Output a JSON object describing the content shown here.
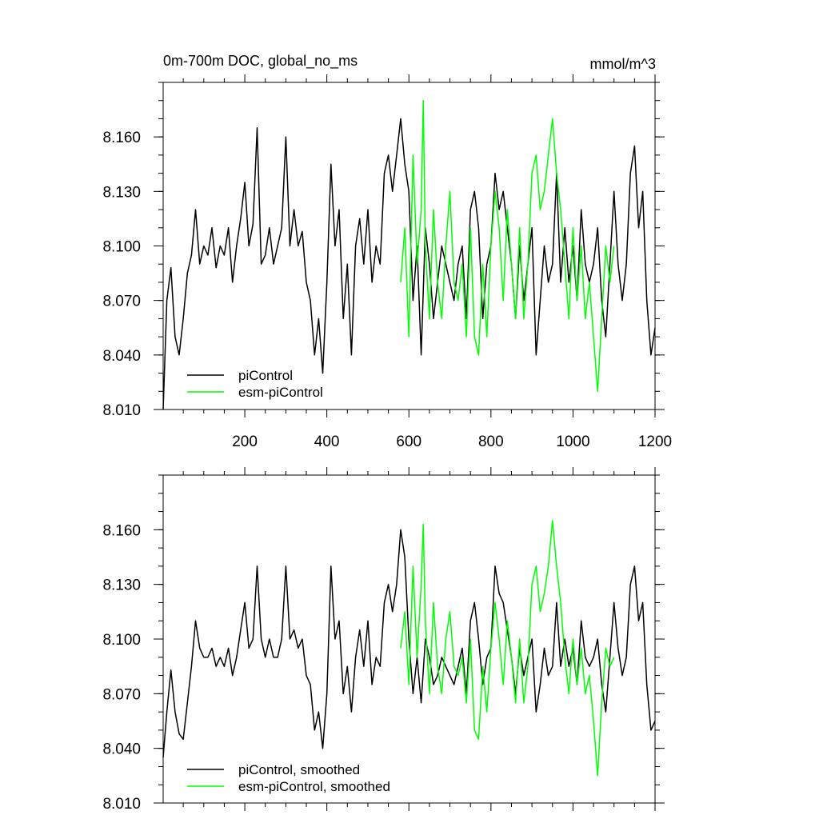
{
  "chart_data": [
    {
      "type": "line",
      "title": "0m-700m DOC, global_no_ms",
      "units": "mmol/m^3",
      "xlim": [
        1,
        1200
      ],
      "ylim": [
        8.01,
        8.19
      ],
      "xticks": [
        200,
        400,
        600,
        800,
        1000,
        1200
      ],
      "xtick_labels": [
        "200",
        "400",
        "600",
        "800",
        "1000",
        "1200"
      ],
      "yticks": [
        8.01,
        8.04,
        8.07,
        8.1,
        8.13,
        8.16
      ],
      "ytick_labels": [
        "8.010",
        "8.040",
        "8.070",
        "8.100",
        "8.130",
        "8.160"
      ],
      "legend": [
        "piControl",
        "esm-piControl"
      ],
      "legend_position": "bottom-left",
      "series": [
        {
          "name": "piControl",
          "color": "#000000",
          "x": [
            1,
            10,
            20,
            30,
            40,
            50,
            60,
            70,
            80,
            90,
            100,
            110,
            120,
            130,
            140,
            150,
            160,
            170,
            180,
            190,
            200,
            210,
            220,
            230,
            240,
            250,
            260,
            270,
            280,
            290,
            300,
            310,
            320,
            330,
            340,
            350,
            360,
            370,
            380,
            390,
            400,
            410,
            420,
            430,
            440,
            450,
            460,
            470,
            480,
            490,
            500,
            510,
            520,
            530,
            540,
            550,
            560,
            570,
            580,
            590,
            600,
            610,
            620,
            630,
            640,
            650,
            660,
            670,
            680,
            690,
            700,
            710,
            720,
            730,
            740,
            750,
            760,
            770,
            780,
            790,
            800,
            810,
            820,
            830,
            840,
            850,
            860,
            870,
            880,
            890,
            900,
            910,
            920,
            930,
            940,
            950,
            960,
            970,
            980,
            990,
            1000,
            1010,
            1020,
            1030,
            1040,
            1050,
            1060,
            1070,
            1080,
            1090,
            1100,
            1110,
            1120,
            1130,
            1140,
            1150,
            1160,
            1170,
            1180,
            1190,
            1200
          ],
          "values": [
            8.01,
            8.07,
            8.088,
            8.05,
            8.04,
            8.06,
            8.085,
            8.095,
            8.12,
            8.09,
            8.1,
            8.095,
            8.11,
            8.088,
            8.1,
            8.095,
            8.11,
            8.08,
            8.1,
            8.115,
            8.135,
            8.1,
            8.112,
            8.165,
            8.09,
            8.095,
            8.11,
            8.09,
            8.1,
            8.11,
            8.16,
            8.1,
            8.12,
            8.1,
            8.108,
            8.08,
            8.07,
            8.04,
            8.06,
            8.03,
            8.08,
            8.145,
            8.1,
            8.12,
            8.06,
            8.09,
            8.04,
            8.1,
            8.115,
            8.09,
            8.12,
            8.08,
            8.1,
            8.09,
            8.14,
            8.15,
            8.13,
            8.15,
            8.17,
            8.145,
            8.13,
            8.07,
            8.1,
            8.04,
            8.11,
            8.09,
            8.06,
            8.08,
            8.1,
            8.09,
            8.08,
            8.07,
            8.09,
            8.1,
            8.06,
            8.12,
            8.13,
            8.11,
            8.06,
            8.09,
            8.1,
            8.14,
            8.12,
            8.13,
            8.11,
            8.09,
            8.06,
            8.1,
            8.07,
            8.09,
            8.11,
            8.04,
            8.07,
            8.1,
            8.08,
            8.09,
            8.14,
            8.08,
            8.11,
            8.08,
            8.1,
            8.07,
            8.12,
            8.09,
            8.08,
            8.09,
            8.11,
            8.07,
            8.05,
            8.09,
            8.13,
            8.09,
            8.07,
            8.09,
            8.14,
            8.155,
            8.11,
            8.13,
            8.07,
            8.04,
            8.055
          ]
        },
        {
          "name": "esm-piControl",
          "color": "#00ff00",
          "x": [
            580,
            590,
            600,
            610,
            620,
            630,
            635,
            640,
            650,
            660,
            670,
            680,
            690,
            700,
            710,
            720,
            730,
            740,
            750,
            760,
            770,
            780,
            790,
            800,
            810,
            820,
            830,
            840,
            850,
            860,
            870,
            880,
            890,
            900,
            910,
            920,
            930,
            940,
            950,
            960,
            970,
            980,
            990,
            1000,
            1010,
            1020,
            1030,
            1040,
            1050,
            1060,
            1070,
            1080,
            1090,
            1100
          ],
          "values": [
            8.08,
            8.11,
            8.05,
            8.15,
            8.09,
            8.12,
            8.18,
            8.1,
            8.06,
            8.12,
            8.08,
            8.06,
            8.1,
            8.13,
            8.08,
            8.07,
            8.09,
            8.05,
            8.11,
            8.05,
            8.04,
            8.09,
            8.05,
            8.1,
            8.13,
            8.11,
            8.07,
            8.12,
            8.09,
            8.06,
            8.11,
            8.06,
            8.09,
            8.14,
            8.15,
            8.12,
            8.13,
            8.15,
            8.17,
            8.14,
            8.12,
            8.09,
            8.06,
            8.11,
            8.07,
            8.1,
            8.06,
            8.08,
            8.05,
            8.02,
            8.06,
            8.1,
            8.08,
            8.1
          ]
        }
      ]
    },
    {
      "type": "line",
      "title": "",
      "xlim": [
        1,
        1200
      ],
      "ylim": [
        8.01,
        8.19
      ],
      "yticks": [
        8.01,
        8.04,
        8.07,
        8.1,
        8.13,
        8.16
      ],
      "ytick_labels": [
        "8.010",
        "8.040",
        "8.070",
        "8.100",
        "8.130",
        "8.160"
      ],
      "legend": [
        "piControl, smoothed",
        "esm-piControl, smoothed"
      ],
      "legend_position": "bottom-left",
      "series": [
        {
          "name": "piControl, smoothed",
          "color": "#000000",
          "x": [
            1,
            10,
            20,
            30,
            40,
            50,
            60,
            70,
            80,
            90,
            100,
            110,
            120,
            130,
            140,
            150,
            160,
            170,
            180,
            190,
            200,
            210,
            220,
            230,
            240,
            250,
            260,
            270,
            280,
            290,
            300,
            310,
            320,
            330,
            340,
            350,
            360,
            370,
            380,
            390,
            400,
            410,
            420,
            430,
            440,
            450,
            460,
            470,
            480,
            490,
            500,
            510,
            520,
            530,
            540,
            550,
            560,
            570,
            580,
            590,
            600,
            610,
            620,
            630,
            640,
            650,
            660,
            670,
            680,
            690,
            700,
            710,
            720,
            730,
            740,
            750,
            760,
            770,
            780,
            790,
            800,
            810,
            820,
            830,
            840,
            850,
            860,
            870,
            880,
            890,
            900,
            910,
            920,
            930,
            940,
            950,
            960,
            970,
            980,
            990,
            1000,
            1010,
            1020,
            1030,
            1040,
            1050,
            1060,
            1070,
            1080,
            1090,
            1100,
            1110,
            1120,
            1130,
            1140,
            1150,
            1160,
            1170,
            1180,
            1190,
            1200
          ],
          "values": [
            8.035,
            8.06,
            8.083,
            8.06,
            8.048,
            8.045,
            8.065,
            8.085,
            8.11,
            8.095,
            8.09,
            8.09,
            8.095,
            8.085,
            8.09,
            8.085,
            8.095,
            8.08,
            8.09,
            8.105,
            8.12,
            8.095,
            8.1,
            8.14,
            8.1,
            8.09,
            8.1,
            8.09,
            8.09,
            8.1,
            8.14,
            8.1,
            8.105,
            8.095,
            8.1,
            8.08,
            8.075,
            8.05,
            8.06,
            8.04,
            8.07,
            8.14,
            8.1,
            8.11,
            8.07,
            8.085,
            8.06,
            8.09,
            8.105,
            8.085,
            8.11,
            8.075,
            8.09,
            8.085,
            8.12,
            8.13,
            8.115,
            8.13,
            8.16,
            8.145,
            8.1,
            8.07,
            8.09,
            8.065,
            8.1,
            8.09,
            8.075,
            8.08,
            8.09,
            8.085,
            8.08,
            8.075,
            8.085,
            8.095,
            8.07,
            8.11,
            8.12,
            8.1,
            8.075,
            8.09,
            8.095,
            8.14,
            8.125,
            8.12,
            8.105,
            8.09,
            8.07,
            8.095,
            8.08,
            8.09,
            8.1,
            8.06,
            8.075,
            8.095,
            8.08,
            8.085,
            8.12,
            8.085,
            8.1,
            8.085,
            8.095,
            8.075,
            8.11,
            8.09,
            8.085,
            8.09,
            8.1,
            8.075,
            8.06,
            8.09,
            8.12,
            8.095,
            8.08,
            8.09,
            8.13,
            8.14,
            8.11,
            8.12,
            8.075,
            8.05,
            8.055
          ]
        },
        {
          "name": "esm-piControl, smoothed",
          "color": "#00ff00",
          "x": [
            580,
            590,
            600,
            610,
            620,
            630,
            635,
            640,
            650,
            660,
            670,
            680,
            690,
            700,
            710,
            720,
            730,
            740,
            750,
            760,
            770,
            780,
            790,
            800,
            810,
            820,
            830,
            840,
            850,
            860,
            870,
            880,
            890,
            900,
            910,
            920,
            930,
            940,
            950,
            960,
            970,
            980,
            990,
            1000,
            1010,
            1020,
            1030,
            1040,
            1050,
            1060,
            1070,
            1080,
            1090,
            1100
          ],
          "values": [
            8.095,
            8.115,
            8.075,
            8.14,
            8.09,
            8.13,
            8.163,
            8.11,
            8.07,
            8.12,
            8.085,
            8.07,
            8.1,
            8.115,
            8.085,
            8.08,
            8.09,
            8.065,
            8.1,
            8.05,
            8.045,
            8.085,
            8.06,
            8.095,
            8.12,
            8.1,
            8.075,
            8.11,
            8.09,
            8.065,
            8.1,
            8.065,
            8.085,
            8.13,
            8.14,
            8.115,
            8.125,
            8.14,
            8.165,
            8.14,
            8.12,
            8.09,
            8.07,
            8.1,
            8.075,
            8.095,
            8.07,
            8.08,
            8.055,
            8.025,
            8.065,
            8.095,
            8.085,
            8.09
          ]
        }
      ]
    }
  ]
}
